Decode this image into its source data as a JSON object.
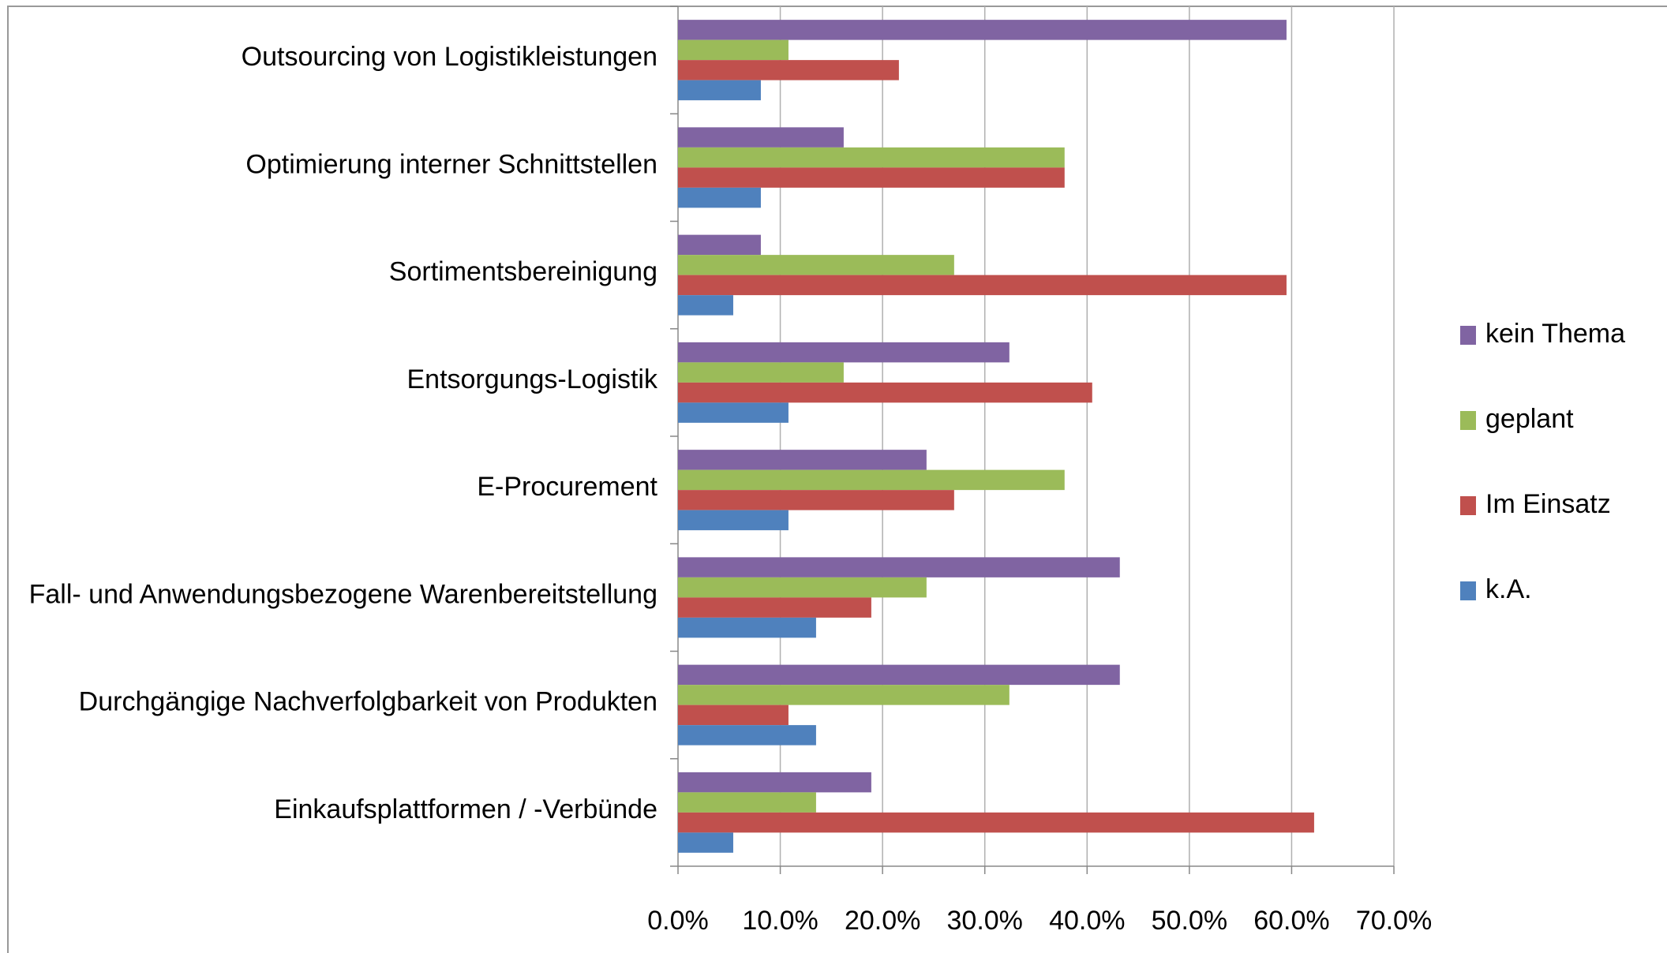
{
  "chart_data": {
    "type": "bar",
    "orientation": "horizontal",
    "categories": [
      "Outsourcing von Logistikleistungen",
      "Optimierung interner Schnittstellen",
      "Sortimentsbereinigung",
      "Entsorgungs-Logistik",
      "E-Procurement",
      "Fall- und Anwendungsbezogene Warenbereitstellung",
      "Durchgängige Nachverfolgbarkeit von Produkten",
      "Einkaufsplattformen / -Verbünde"
    ],
    "series": [
      {
        "name": "kein Thema",
        "color": "#8064a2",
        "values": [
          59.5,
          16.2,
          8.1,
          32.4,
          24.3,
          43.2,
          43.2,
          18.9
        ]
      },
      {
        "name": "geplant",
        "color": "#9bbb59",
        "values": [
          10.8,
          37.8,
          27.0,
          16.2,
          37.8,
          24.3,
          32.4,
          13.5
        ]
      },
      {
        "name": "Im Einsatz",
        "color": "#c0504d",
        "values": [
          21.6,
          37.8,
          59.5,
          40.5,
          27.0,
          18.9,
          10.8,
          62.2
        ]
      },
      {
        "name": "k.A.",
        "color": "#4f81bd",
        "values": [
          8.1,
          8.1,
          5.4,
          10.8,
          10.8,
          13.5,
          13.5,
          5.4
        ]
      }
    ],
    "xlim": [
      0,
      70
    ],
    "xticks": [
      {
        "value": 0,
        "label": "0.0%"
      },
      {
        "value": 10,
        "label": "10.0%"
      },
      {
        "value": 20,
        "label": "20.0%"
      },
      {
        "value": 30,
        "label": "30.0%"
      },
      {
        "value": 40,
        "label": "40.0%"
      },
      {
        "value": 50,
        "label": "50.0%"
      },
      {
        "value": 60,
        "label": "60.0%"
      },
      {
        "value": 70,
        "label": "70.0%"
      }
    ],
    "grid": true,
    "legend": "right"
  }
}
